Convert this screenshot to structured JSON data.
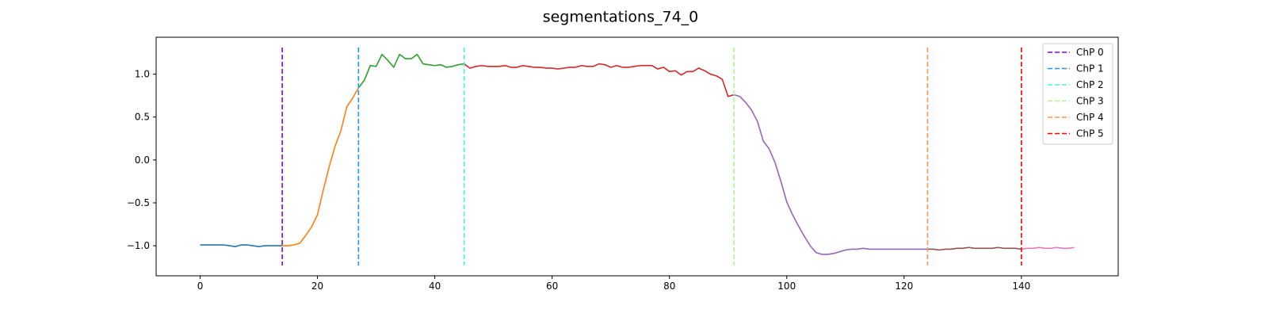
{
  "chart_data": {
    "type": "line",
    "title": "segmentations_74_0",
    "xlabel": "",
    "ylabel": "",
    "xlim": [
      -7.5,
      156.5
    ],
    "ylim": [
      -1.35,
      1.43
    ],
    "x_ticks": [
      0,
      20,
      40,
      60,
      80,
      100,
      120,
      140
    ],
    "y_ticks": [
      -1.0,
      -0.5,
      0.0,
      0.5,
      1.0
    ],
    "x_tick_labels": [
      "0",
      "20",
      "40",
      "60",
      "80",
      "100",
      "120",
      "140"
    ],
    "y_tick_labels": [
      "−1.0",
      "−0.5",
      "0.0",
      "0.5",
      "1.0"
    ],
    "grid": false,
    "legend_position": "top-right",
    "segments": [
      {
        "color": "#1f77b4",
        "x_start": 0,
        "x_end": 14
      },
      {
        "color": "#ff7f0e",
        "x_start": 14,
        "x_end": 27
      },
      {
        "color": "#2ca02c",
        "x_start": 27,
        "x_end": 45
      },
      {
        "color": "#d62728",
        "x_start": 45,
        "x_end": 91
      },
      {
        "color": "#9467bd",
        "x_start": 91,
        "x_end": 124
      },
      {
        "color": "#8c564b",
        "x_start": 124,
        "x_end": 140
      },
      {
        "color": "#e377c2",
        "x_start": 140,
        "x_end": 149
      }
    ],
    "y": [
      -0.99,
      -0.99,
      -0.99,
      -0.99,
      -0.99,
      -1.0,
      -1.01,
      -0.99,
      -0.99,
      -1.0,
      -1.01,
      -1.0,
      -1.0,
      -1.0,
      -1.0,
      -1.0,
      -0.99,
      -0.97,
      -0.88,
      -0.78,
      -0.64,
      -0.35,
      -0.08,
      0.16,
      0.34,
      0.62,
      0.72,
      0.84,
      0.93,
      1.1,
      1.09,
      1.23,
      1.16,
      1.08,
      1.23,
      1.18,
      1.18,
      1.23,
      1.12,
      1.11,
      1.1,
      1.11,
      1.08,
      1.09,
      1.11,
      1.12,
      1.07,
      1.09,
      1.1,
      1.09,
      1.09,
      1.09,
      1.1,
      1.08,
      1.08,
      1.1,
      1.09,
      1.08,
      1.08,
      1.07,
      1.07,
      1.06,
      1.07,
      1.08,
      1.08,
      1.1,
      1.09,
      1.09,
      1.12,
      1.11,
      1.08,
      1.1,
      1.08,
      1.08,
      1.09,
      1.1,
      1.1,
      1.1,
      1.06,
      1.08,
      1.03,
      1.04,
      0.99,
      1.03,
      1.03,
      1.07,
      1.04,
      1.0,
      0.98,
      0.94,
      0.74,
      0.76,
      0.74,
      0.67,
      0.58,
      0.45,
      0.22,
      0.13,
      -0.03,
      -0.25,
      -0.49,
      -0.64,
      -0.77,
      -0.89,
      -1.0,
      -1.08,
      -1.1,
      -1.1,
      -1.09,
      -1.07,
      -1.05,
      -1.04,
      -1.04,
      -1.03,
      -1.04,
      -1.04,
      -1.04,
      -1.04,
      -1.04,
      -1.04,
      -1.04,
      -1.04,
      -1.04,
      -1.04,
      -1.04,
      -1.04,
      -1.05,
      -1.04,
      -1.04,
      -1.03,
      -1.03,
      -1.02,
      -1.03,
      -1.03,
      -1.03,
      -1.03,
      -1.02,
      -1.03,
      -1.03,
      -1.03,
      -1.04,
      -1.03,
      -1.03,
      -1.02,
      -1.03,
      -1.03,
      -1.02,
      -1.03,
      -1.03,
      -1.02
    ],
    "changepoints": [
      {
        "name": "ChP 0",
        "x": 14,
        "color": "#7f00ff"
      },
      {
        "name": "ChP 1",
        "x": 27,
        "color": "#1996f3"
      },
      {
        "name": "ChP 2",
        "x": 45,
        "color": "#4cf2ce"
      },
      {
        "name": "ChP 3",
        "x": 91,
        "color": "#b2f396"
      },
      {
        "name": "ChP 4",
        "x": 124,
        "color": "#ff964f"
      },
      {
        "name": "ChP 5",
        "x": 140,
        "color": "#ff0000"
      }
    ]
  }
}
